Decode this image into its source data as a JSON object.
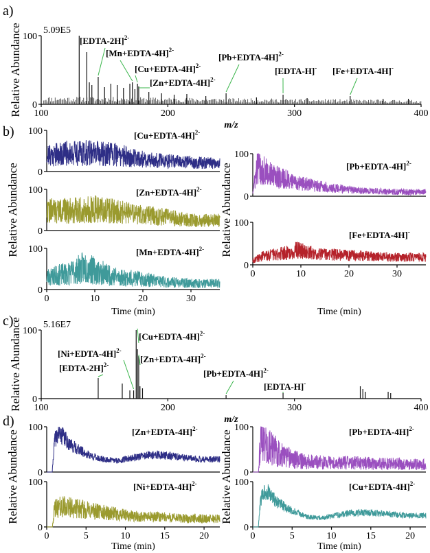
{
  "chart_data": [
    {
      "panel": "a)",
      "type": "bar",
      "title": "",
      "xlabel": "m/z",
      "ylabel": "Relative Abundance",
      "xlim": [
        100,
        400
      ],
      "ylim": [
        0,
        100
      ],
      "x_ticks": [
        "100",
        "200",
        "300",
        "400"
      ],
      "y_ticks": [
        "0",
        "100"
      ],
      "scale_label": "5.09E5",
      "annotations": [
        {
          "main": "[EDTA-2H]",
          "sup": "2-",
          "x": 145,
          "y": 40
        },
        {
          "main": "[Mn+EDTA-4H]",
          "sup": "2-",
          "x": 172,
          "y": 32
        },
        {
          "main": "[Cu+EDTA-4H]",
          "sup": "2-",
          "x": 176,
          "y": 30
        },
        {
          "main": "[Zn+EDTA-4H]",
          "sup": "2-",
          "x": 177,
          "y": 22
        },
        {
          "main": "[Pb+EDTA-4H]",
          "sup": "2-",
          "x": 246,
          "y": 16
        },
        {
          "main": "[EDTA-H]",
          "sup": "-",
          "x": 291,
          "y": 14
        },
        {
          "main": "[Fe+EDTA-4H]",
          "sup": "-",
          "x": 344,
          "y": 12
        }
      ],
      "series": [
        {
          "values": [
            [
              130,
              100
            ],
            [
              136,
              76
            ],
            [
              145,
              40
            ],
            [
              138,
              32
            ],
            [
              140,
              28
            ],
            [
              150,
              25
            ],
            [
              155,
              30
            ],
            [
              160,
              28
            ],
            [
              165,
              24
            ],
            [
              170,
              30
            ],
            [
              172,
              32
            ],
            [
              174,
              22
            ],
            [
              176,
              30
            ],
            [
              177,
              26
            ],
            [
              185,
              18
            ],
            [
              195,
              16
            ],
            [
              205,
              14
            ],
            [
              215,
              15
            ],
            [
              230,
              12
            ],
            [
              246,
              16
            ],
            [
              270,
              10
            ],
            [
              291,
              14
            ],
            [
              310,
              9
            ],
            [
              344,
              12
            ],
            [
              370,
              8
            ],
            [
              390,
              8
            ]
          ]
        }
      ]
    },
    {
      "panel": "b)",
      "type": "line",
      "xlabel": "Time (min)",
      "ylabel": "Relative Abundance",
      "xlim": [
        0,
        36
      ],
      "ylim": [
        0,
        100
      ],
      "x_ticks": [
        "0",
        "10",
        "20",
        "30"
      ],
      "y_ticks": [
        "0",
        "100"
      ],
      "series": [
        {
          "name": "[Cu+EDTA-4H]",
          "sup": "2-",
          "color": "#2e2e86",
          "values": [
            [
              0,
              40
            ],
            [
              5,
              45
            ],
            [
              10,
              45
            ],
            [
              15,
              40
            ],
            [
              20,
              30
            ],
            [
              25,
              25
            ],
            [
              30,
              22
            ],
            [
              36,
              20
            ]
          ]
        },
        {
          "name": "[Zn+EDTA-4H]",
          "sup": "2-",
          "color": "#9a9a2e",
          "values": [
            [
              0,
              48
            ],
            [
              5,
              48
            ],
            [
              10,
              52
            ],
            [
              15,
              45
            ],
            [
              20,
              38
            ],
            [
              25,
              32
            ],
            [
              30,
              25
            ],
            [
              36,
              25
            ]
          ]
        },
        {
          "name": "[Mn+EDTA-4H]",
          "sup": "2-",
          "color": "#3f9a9a",
          "values": [
            [
              0,
              30
            ],
            [
              5,
              40
            ],
            [
              8,
              55
            ],
            [
              10,
              45
            ],
            [
              15,
              30
            ],
            [
              20,
              25
            ],
            [
              25,
              18
            ],
            [
              30,
              15
            ],
            [
              36,
              15
            ]
          ]
        },
        {
          "name": "[Pb+EDTA-4H]",
          "sup": "2-",
          "color": "#9a4fbf",
          "values": [
            [
              0,
              10
            ],
            [
              1,
              70
            ],
            [
              3,
              55
            ],
            [
              5,
              45
            ],
            [
              10,
              30
            ],
            [
              15,
              22
            ],
            [
              20,
              15
            ],
            [
              25,
              12
            ],
            [
              30,
              10
            ],
            [
              36,
              10
            ]
          ]
        },
        {
          "name": "[Fe+EDTA-4H]",
          "sup": "-",
          "color": "#b5222a",
          "values": [
            [
              0,
              10
            ],
            [
              2,
              20
            ],
            [
              5,
              25
            ],
            [
              8,
              30
            ],
            [
              9,
              35
            ],
            [
              12,
              28
            ],
            [
              15,
              25
            ],
            [
              20,
              22
            ],
            [
              25,
              20
            ],
            [
              30,
              18
            ],
            [
              36,
              18
            ]
          ]
        }
      ]
    },
    {
      "panel": "c)",
      "type": "bar",
      "xlabel": "m/z",
      "ylabel": "Relative Abundance",
      "xlim": [
        100,
        400
      ],
      "ylim": [
        0,
        100
      ],
      "x_ticks": [
        "100",
        "200",
        "300",
        "400"
      ],
      "y_ticks": [
        "0",
        "100"
      ],
      "scale_label": "5.16E7",
      "annotations": [
        {
          "main": "[Ni+EDTA-4H]",
          "sup": "2-",
          "x": 173,
          "y": 12
        },
        {
          "main": "[EDTA-2H]",
          "sup": "2-",
          "x": 145,
          "y": 30
        },
        {
          "main": "[Cu+EDTA-4H]",
          "sup": "2-",
          "x": 176,
          "y": 100
        },
        {
          "main": "[Zn+EDTA-4H]",
          "sup": "2-",
          "x": 177,
          "y": 62
        },
        {
          "main": "[Pb+EDTA-4H]",
          "sup": "2-",
          "x": 246,
          "y": 5
        },
        {
          "main": "[EDTA-H]",
          "sup": "-",
          "x": 291,
          "y": 8
        }
      ],
      "series": [
        {
          "values": [
            [
              145,
              30
            ],
            [
              164,
              22
            ],
            [
              170,
              12
            ],
            [
              173,
              12
            ],
            [
              175,
              100
            ],
            [
              176,
              72
            ],
            [
              177,
              62
            ],
            [
              178,
              18
            ],
            [
              180,
              15
            ],
            [
              246,
              5
            ],
            [
              291,
              8
            ],
            [
              352,
              18
            ],
            [
              354,
              14
            ],
            [
              356,
              10
            ],
            [
              374,
              10
            ],
            [
              376,
              8
            ]
          ]
        }
      ]
    },
    {
      "panel": "d)",
      "type": "line",
      "xlabel": "Time (min)",
      "ylabel": "Relative Abundance",
      "xlim": [
        0,
        22
      ],
      "ylim": [
        0,
        100
      ],
      "x_ticks": [
        "0",
        "5",
        "10",
        "15",
        "20"
      ],
      "y_ticks": [
        "0",
        "100"
      ],
      "series": [
        {
          "name": "[Zn+EDTA-4H]",
          "sup": "2-",
          "color": "#2e2e86",
          "values": [
            [
              0,
              0
            ],
            [
              0.7,
              0
            ],
            [
              1,
              70
            ],
            [
              1.5,
              85
            ],
            [
              2,
              80
            ],
            [
              3,
              60
            ],
            [
              5,
              40
            ],
            [
              7,
              28
            ],
            [
              9,
              25
            ],
            [
              12,
              35
            ],
            [
              14,
              38
            ],
            [
              16,
              35
            ],
            [
              18,
              30
            ],
            [
              20,
              28
            ],
            [
              21.5,
              28
            ]
          ]
        },
        {
          "name": "[Ni+EDTA-4H]",
          "sup": "2-",
          "color": "#9a9a2e",
          "values": [
            [
              0,
              0
            ],
            [
              0.7,
              0
            ],
            [
              1,
              40
            ],
            [
              2,
              45
            ],
            [
              4,
              40
            ],
            [
              6,
              35
            ],
            [
              8,
              30
            ],
            [
              10,
              25
            ],
            [
              12,
              22
            ],
            [
              14,
              22
            ],
            [
              16,
              20
            ],
            [
              18,
              18
            ],
            [
              20,
              18
            ],
            [
              21.5,
              18
            ]
          ]
        },
        {
          "name": "[Pb+EDTA-4H]",
          "sup": "2-",
          "color": "#9a4fbf",
          "values": [
            [
              0,
              0
            ],
            [
              0.7,
              0
            ],
            [
              1,
              80
            ],
            [
              2,
              55
            ],
            [
              4,
              35
            ],
            [
              6,
              25
            ],
            [
              8,
              22
            ],
            [
              10,
              20
            ],
            [
              12,
              20
            ],
            [
              14,
              20
            ],
            [
              16,
              18
            ],
            [
              18,
              18
            ],
            [
              20,
              17
            ],
            [
              21.5,
              17
            ]
          ]
        },
        {
          "name": "[Cu+EDTA-4H]",
          "sup": "2-",
          "color": "#3f9a9a",
          "values": [
            [
              0,
              0
            ],
            [
              0.7,
              0
            ],
            [
              1,
              60
            ],
            [
              1.5,
              80
            ],
            [
              2,
              75
            ],
            [
              3,
              55
            ],
            [
              5,
              35
            ],
            [
              7,
              22
            ],
            [
              9,
              20
            ],
            [
              12,
              30
            ],
            [
              14,
              32
            ],
            [
              16,
              30
            ],
            [
              18,
              27
            ],
            [
              20,
              25
            ],
            [
              21.5,
              25
            ]
          ]
        }
      ]
    }
  ]
}
